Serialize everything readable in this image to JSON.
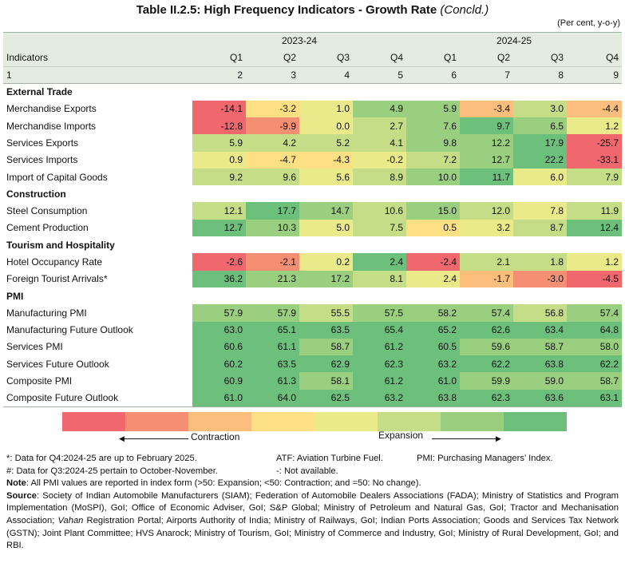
{
  "title": {
    "main": "Table II.2.5: High Frequency Indicators - Growth Rate",
    "concld": "(Concld.)"
  },
  "unit": "(Per cent, y-o-y)",
  "years": [
    "2023-24",
    "2024-25"
  ],
  "columns": {
    "indicators": "Indicators",
    "quarters": [
      "Q1",
      "Q2",
      "Q3",
      "Q4",
      "Q1",
      "Q2",
      "Q3",
      "Q4"
    ]
  },
  "index_row": [
    "1",
    "2",
    "3",
    "4",
    "5",
    "6",
    "7",
    "8",
    "9"
  ],
  "sections": [
    {
      "name": "External Trade",
      "rows": [
        {
          "label": "Merchandise Exports",
          "values": [
            "-14.1",
            "-3.2",
            "1.0",
            "4.9",
            "5.9",
            "-3.4",
            "3.0",
            "-4.4"
          ],
          "colors": [
            1,
            4,
            5,
            7,
            7,
            3,
            6,
            3
          ]
        },
        {
          "label": "Merchandise Imports",
          "values": [
            "-12.8",
            "-9.9",
            "0.0",
            "2.7",
            "7.6",
            "9.7",
            "6.5",
            "1.2"
          ],
          "colors": [
            1,
            2,
            5,
            6,
            7,
            8,
            7,
            5
          ]
        },
        {
          "label": "Services Exports",
          "values": [
            "5.9",
            "4.2",
            "5.2",
            "4.1",
            "9.8",
            "12.2",
            "17.9",
            "-25.7"
          ],
          "colors": [
            6,
            6,
            6,
            6,
            7,
            7,
            8,
            1
          ]
        },
        {
          "label": "Services Imports",
          "values": [
            "0.9",
            "-4.7",
            "-4.3",
            "-0.2",
            "7.2",
            "12.7",
            "22.2",
            "-33.1"
          ],
          "colors": [
            5,
            4,
            4,
            5,
            6,
            7,
            8,
            1
          ]
        },
        {
          "label": "Import of Capital Goods",
          "values": [
            "9.2",
            "9.6",
            "5.6",
            "8.9",
            "10.0",
            "11.7",
            "6.0",
            "7.9"
          ],
          "colors": [
            6,
            6,
            5,
            6,
            7,
            8,
            5,
            6
          ]
        }
      ]
    },
    {
      "name": "Construction",
      "rows": [
        {
          "label": "Steel Consumption",
          "values": [
            "12.1",
            "17.7",
            "14.7",
            "10.6",
            "15.0",
            "12.0",
            "7.8",
            "11.9"
          ],
          "colors": [
            6,
            8,
            7,
            6,
            7,
            6,
            5,
            6
          ]
        },
        {
          "label": "Cement Production",
          "values": [
            "12.7",
            "10.3",
            "5.0",
            "7.5",
            "0.5",
            "3.2",
            "8.7",
            "12.4"
          ],
          "colors": [
            8,
            7,
            5,
            6,
            4,
            5,
            6,
            8
          ]
        }
      ]
    },
    {
      "name": "Tourism and Hospitality",
      "rows": [
        {
          "label": "Hotel Occupancy Rate",
          "values": [
            "-2.6",
            "-2.1",
            "0.2",
            "2.4",
            "-2.4",
            "2.1",
            "1.8",
            "1.2"
          ],
          "colors": [
            1,
            2,
            5,
            8,
            1,
            6,
            6,
            5
          ]
        },
        {
          "label": "Foreign Tourist Arrivals*",
          "values": [
            "36.2",
            "21.3",
            "17.2",
            "8.1",
            "2.4",
            "-1.7",
            "-3.0",
            "-4.5"
          ],
          "colors": [
            8,
            7,
            7,
            6,
            5,
            3,
            2,
            1
          ]
        }
      ]
    },
    {
      "name": "PMI",
      "rows": [
        {
          "label": "Manufacturing PMI",
          "values": [
            "57.9",
            "57.9",
            "55.5",
            "57.5",
            "58.2",
            "57.4",
            "56.8",
            "57.4"
          ],
          "colors": [
            7,
            7,
            6,
            7,
            7,
            7,
            6,
            7
          ]
        },
        {
          "label": "Manufacturing Future Outlook",
          "values": [
            "63.0",
            "65.1",
            "63.5",
            "65.4",
            "65.2",
            "62.6",
            "63.4",
            "64.8"
          ],
          "colors": [
            8,
            8,
            8,
            8,
            8,
            8,
            8,
            8
          ]
        },
        {
          "label": "Services PMI",
          "values": [
            "60.6",
            "61.1",
            "58.7",
            "61.2",
            "60.5",
            "59.6",
            "58.7",
            "58.0"
          ],
          "colors": [
            8,
            8,
            7,
            8,
            8,
            7,
            7,
            7
          ]
        },
        {
          "label": "Services Future Outlook",
          "values": [
            "60.2",
            "63.5",
            "62.9",
            "62.3",
            "63.2",
            "62.2",
            "63.8",
            "62.2"
          ],
          "colors": [
            8,
            8,
            8,
            8,
            8,
            8,
            8,
            8
          ]
        },
        {
          "label": "Composite PMI",
          "values": [
            "60.9",
            "61.3",
            "58.1",
            "61.2",
            "61.0",
            "59.9",
            "59.0",
            "58.7"
          ],
          "colors": [
            8,
            8,
            7,
            8,
            8,
            7,
            7,
            7
          ]
        },
        {
          "label": "Composite Future Outlook",
          "values": [
            "61.0",
            "64.0",
            "62.5",
            "63.2",
            "63.8",
            "62.3",
            "63.6",
            "63.1"
          ],
          "colors": [
            8,
            8,
            8,
            8,
            8,
            8,
            8,
            8
          ]
        }
      ]
    }
  ],
  "palette": [
    "#f0676e",
    "#f58f73",
    "#fbbe7c",
    "#fee084",
    "#eaea8a",
    "#c4dd86",
    "#99cf7e",
    "#6cc07b"
  ],
  "legend": {
    "contraction": "Contraction",
    "expansion": "Expansion"
  },
  "notes": {
    "n1": "*: Data for Q4:2024-25 are up to February 2025.",
    "atf": "ATF: Aviation Turbine Fuel.",
    "pmi": "PMI: Purchasing Managers’ Index.",
    "n2": "#: Data for Q3:2024-25 pertain to October-November.",
    "na": "-: Not available.",
    "note_label": "Note",
    "note_text": ": All PMI values are reported in index form (>50: Expansion; <50: Contraction; and =50: No change).",
    "source_label": "Source",
    "source_text_1": ": Society of Indian Automobile Manufacturers (SIAM); Federation of Automobile Dealers Associations (FADA); Ministry of Statistics and Program Implementation (MoSPI), GoI; Office of Economic Adviser, GoI; S&P Global; Ministry of Petroleum and Natural Gas, GoI; Tractor and Mechanisation Association; ",
    "source_vahan": "Vahan",
    "source_text_2": " Registration Portal; Airports Authority of India; Ministry of Railways, GoI; Indian Ports Association; Goods and Services Tax Network (GSTN); Joint Plant Committee; HVS Anarock; Ministry of Tourism, GoI; Ministry of Commerce and Industry, GoI; Ministry of Rural Development, GoI; and RBI."
  }
}
